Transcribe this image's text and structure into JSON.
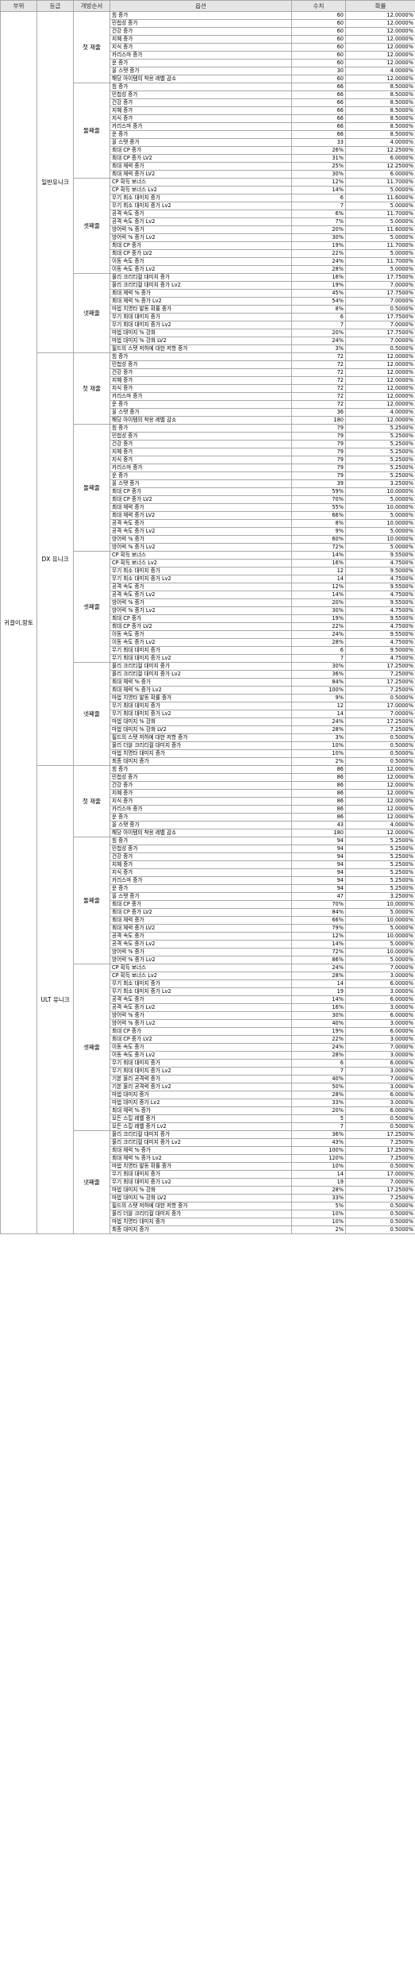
{
  "table": {
    "headers": [
      "부위",
      "등급",
      "개방순서",
      "옵션",
      "수치",
      "확률"
    ],
    "slot": "귀걸이,망토",
    "grades": [
      {
        "name": "일반유니크",
        "stages": [
          {
            "name": "첫 재줄",
            "rows": [
              [
                "힘 증가",
                "60",
                "12.0000%"
              ],
              [
                "민첩성 증가",
                "60",
                "12.0000%"
              ],
              [
                "건강 증가",
                "60",
                "12.0000%"
              ],
              [
                "지혜 증가",
                "60",
                "12.0000%"
              ],
              [
                "지식 증가",
                "60",
                "12.0000%"
              ],
              [
                "카리스마 증가",
                "60",
                "12.0000%"
              ],
              [
                "운 증가",
                "60",
                "12.0000%"
              ],
              [
                "올 스탯 증가",
                "30",
                "4.0000%"
              ],
              [
                "해당 아이템의 착용 레벨 감소",
                "60",
                "12.0000%"
              ]
            ]
          },
          {
            "name": "둘째줄",
            "rows": [
              [
                "힘 증가",
                "66",
                "8.5000%"
              ],
              [
                "민첩성 증가",
                "66",
                "8.5000%"
              ],
              [
                "건강 증가",
                "66",
                "8.5000%"
              ],
              [
                "지혜 증가",
                "66",
                "8.5000%"
              ],
              [
                "지식 증가",
                "66",
                "8.5000%"
              ],
              [
                "카리스마 증가",
                "66",
                "8.5000%"
              ],
              [
                "운 증가",
                "66",
                "8.5000%"
              ],
              [
                "올 스탯 증가",
                "33",
                "4.0000%"
              ],
              [
                "최대 CP 증가",
                "26%",
                "12.2500%"
              ],
              [
                "최대 CP 증가 LV2",
                "31%",
                "6.0000%"
              ],
              [
                "최대 체력 증가",
                "25%",
                "12.2500%"
              ],
              [
                "최대 체력 증가 LV2",
                "30%",
                "6.0000%"
              ]
            ]
          },
          {
            "name": "셋째줄",
            "rows": [
              [
                "CP 획득 보너스",
                "12%",
                "11.7000%"
              ],
              [
                "CP 획득 보너스 Lv2",
                "14%",
                "5.0000%"
              ],
              [
                "무기 최소 대미지 증가",
                "6",
                "11.6000%"
              ],
              [
                "무기 최소 대미지 증가 Lv2",
                "7",
                "5.0000%"
              ],
              [
                "공격 속도 증가",
                "6%",
                "11.7000%"
              ],
              [
                "공격 속도 증가 Lv2",
                "7%",
                "5.0000%"
              ],
              [
                "방어력 % 증가",
                "20%",
                "11.6000%"
              ],
              [
                "방어력 % 증가 Lv2",
                "30%",
                "5.0000%"
              ],
              [
                "최대 CP 증가",
                "19%",
                "11.7000%"
              ],
              [
                "최대 CP 증가 LV2",
                "22%",
                "5.0000%"
              ],
              [
                "이동 속도 증가",
                "24%",
                "11.7000%"
              ],
              [
                "이동 속도 증가 Lv2",
                "28%",
                "5.0000%"
              ]
            ]
          },
          {
            "name": "넷째줄",
            "rows": [
              [
                "물리 크리티컬 대미지 증가",
                "16%",
                "17.7500%"
              ],
              [
                "물리 크리티컬 대미지 증가 Lv2",
                "19%",
                "7.0000%"
              ],
              [
                "최대 체력 % 증가",
                "45%",
                "17.7500%"
              ],
              [
                "최대 체력 % 증가 Lv2",
                "54%",
                "7.0000%"
              ],
              [
                "마법 치명타 발동 확률 증가",
                "8%",
                "0.5000%"
              ],
              [
                "무기 최대 대미지 증가",
                "6",
                "17.7500%"
              ],
              [
                "무기 최대 대미지 증가 Lv2",
                "7",
                "7.0000%"
              ],
              [
                "마법 대미지 % 강화",
                "20%",
                "17.7500%"
              ],
              [
                "마법 대미지 % 강화 LV2",
                "24%",
                "7.0000%"
              ],
              [
                "필드의 스탯 저하에 대한 저항 증가",
                "3%",
                "0.5000%"
              ]
            ]
          }
        ]
      },
      {
        "name": "DX 유니크",
        "stages": [
          {
            "name": "첫 재줄",
            "rows": [
              [
                "힘 증가",
                "72",
                "12.0000%"
              ],
              [
                "민첩성 증가",
                "72",
                "12.0000%"
              ],
              [
                "건강 증가",
                "72",
                "12.0000%"
              ],
              [
                "지혜 증가",
                "72",
                "12.0000%"
              ],
              [
                "지식 증가",
                "72",
                "12.0000%"
              ],
              [
                "카리스마 증가",
                "72",
                "12.0000%"
              ],
              [
                "운 증가",
                "72",
                "12.0000%"
              ],
              [
                "올 스탯 증가",
                "36",
                "4.0000%"
              ],
              [
                "해당 아이템의 착용 레벨 감소",
                "180",
                "12.0000%"
              ]
            ]
          },
          {
            "name": "둘째줄",
            "rows": [
              [
                "힘 증가",
                "79",
                "5.2500%"
              ],
              [
                "민첩성 증가",
                "79",
                "5.2500%"
              ],
              [
                "건강 증가",
                "79",
                "5.2500%"
              ],
              [
                "지혜 증가",
                "79",
                "5.2500%"
              ],
              [
                "지식 증가",
                "79",
                "5.2500%"
              ],
              [
                "카리스마 증가",
                "79",
                "5.2500%"
              ],
              [
                "운 증가",
                "79",
                "5.2500%"
              ],
              [
                "올 스탯 증가",
                "39",
                "3.2500%"
              ],
              [
                "최대 CP 증가",
                "59%",
                "10.0000%"
              ],
              [
                "최대 CP 증가 LV2",
                "70%",
                "5.0000%"
              ],
              [
                "최대 체력 증가",
                "55%",
                "10.0000%"
              ],
              [
                "최대 체력 증가 LV2",
                "66%",
                "5.0000%"
              ],
              [
                "공격 속도 증가",
                "8%",
                "10.0000%"
              ],
              [
                "공격 속도 증가 Lv2",
                "9%",
                "5.0000%"
              ],
              [
                "방어력 % 증가",
                "60%",
                "10.0000%"
              ],
              [
                "방어력 % 증가 Lv2",
                "72%",
                "5.0000%"
              ]
            ]
          },
          {
            "name": "셋째줄",
            "rows": [
              [
                "CP 획득 보너스",
                "14%",
                "9.5500%"
              ],
              [
                "CP 획득 보너스 Lv2",
                "16%",
                "4.7500%"
              ],
              [
                "무기 최소 대미지 증가",
                "12",
                "9.5000%"
              ],
              [
                "무기 최소 대미지 증가 Lv2",
                "14",
                "4.7500%"
              ],
              [
                "공격 속도 증가",
                "12%",
                "9.5500%"
              ],
              [
                "공격 속도 증가 Lv2",
                "14%",
                "4.7500%"
              ],
              [
                "방어력 % 증가",
                "20%",
                "9.5500%"
              ],
              [
                "방어력 % 증가 Lv2",
                "30%",
                "4.7500%"
              ],
              [
                "최대 CP 증가",
                "19%",
                "9.5500%"
              ],
              [
                "최대 CP 증가 LV2",
                "22%",
                "4.7500%"
              ],
              [
                "이동 속도 증가",
                "24%",
                "9.5500%"
              ],
              [
                "이동 속도 증가 Lv2",
                "28%",
                "4.7500%"
              ],
              [
                "무기 최대 대미지 증가",
                "6",
                "9.5000%"
              ],
              [
                "무기 최대 대미지 증가 Lv2",
                "7",
                "4.7500%"
              ]
            ]
          },
          {
            "name": "넷째줄",
            "rows": [
              [
                "물리 크리티컬 대미지 증가",
                "30%",
                "17.2500%"
              ],
              [
                "물리 크리티컬 대미지 증가 Lv2",
                "36%",
                "7.2500%"
              ],
              [
                "최대 체력 % 증가",
                "84%",
                "17.2500%"
              ],
              [
                "최대 체력 % 증가 Lv2",
                "100%",
                "7.2500%"
              ],
              [
                "마법 치명타 발동 확률 증가",
                "9%",
                "0.5000%"
              ],
              [
                "무기 최대 대미지 증가",
                "12",
                "17.0000%"
              ],
              [
                "무기 최대 대미지 증가 Lv2",
                "14",
                "7.0000%"
              ],
              [
                "마법 대미지 % 강화",
                "24%",
                "17.2500%"
              ],
              [
                "마법 대미지 % 강화 LV2",
                "28%",
                "7.2500%"
              ],
              [
                "필드의 스탯 저하에 대한 저항 증가",
                "3%",
                "0.5000%"
              ],
              [
                "물리 더블 크리티컬 대미지 증가",
                "10%",
                "0.5000%"
              ],
              [
                "마법 치명타 대미지 증가",
                "10%",
                "0.5000%"
              ],
              [
                "최종 대미지 증가",
                "2%",
                "0.5000%"
              ]
            ]
          }
        ]
      },
      {
        "name": "ULT 유니크",
        "stages": [
          {
            "name": "첫 재줄",
            "rows": [
              [
                "힘 증가",
                "86",
                "12.0000%"
              ],
              [
                "민첩성 증가",
                "86",
                "12.0000%"
              ],
              [
                "건강 증가",
                "86",
                "12.0000%"
              ],
              [
                "지혜 증가",
                "86",
                "12.0000%"
              ],
              [
                "지식 증가",
                "86",
                "12.0000%"
              ],
              [
                "카리스마 증가",
                "86",
                "12.0000%"
              ],
              [
                "운 증가",
                "86",
                "12.0000%"
              ],
              [
                "올 스탯 증가",
                "43",
                "4.0000%"
              ],
              [
                "해당 아이템의 착용 레벨 감소",
                "180",
                "12.0000%"
              ]
            ]
          },
          {
            "name": "둘째줄",
            "rows": [
              [
                "힘 증가",
                "94",
                "5.2500%"
              ],
              [
                "민첩성 증가",
                "94",
                "5.2500%"
              ],
              [
                "건강 증가",
                "94",
                "5.2500%"
              ],
              [
                "지혜 증가",
                "94",
                "5.2500%"
              ],
              [
                "지식 증가",
                "94",
                "5.2500%"
              ],
              [
                "카리스마 증가",
                "94",
                "5.2500%"
              ],
              [
                "운 증가",
                "94",
                "5.2500%"
              ],
              [
                "올 스탯 증가",
                "47",
                "3.2500%"
              ],
              [
                "최대 CP 증가",
                "70%",
                "10.0000%"
              ],
              [
                "최대 CP 증가 LV2",
                "84%",
                "5.0000%"
              ],
              [
                "최대 체력 증가",
                "66%",
                "10.0000%"
              ],
              [
                "최대 체력 증가 LV2",
                "79%",
                "5.0000%"
              ],
              [
                "공격 속도 증가",
                "12%",
                "10.0000%"
              ],
              [
                "공격 속도 증가 Lv2",
                "14%",
                "5.0000%"
              ],
              [
                "방어력 % 증가",
                "72%",
                "10.0000%"
              ],
              [
                "방어력 % 증가 Lv2",
                "86%",
                "5.0000%"
              ]
            ]
          },
          {
            "name": "셋째줄",
            "rows": [
              [
                "CP 획득 보너스",
                "24%",
                "7.0000%"
              ],
              [
                "CP 획득 보너스 Lv2",
                "28%",
                "3.0000%"
              ],
              [
                "무기 최소 대미지 증가",
                "14",
                "6.0000%"
              ],
              [
                "무기 최소 대미지 증가 Lv2",
                "19",
                "3.0000%"
              ],
              [
                "공격 속도 증가",
                "14%",
                "6.0000%"
              ],
              [
                "공격 속도 증가 Lv2",
                "16%",
                "3.0000%"
              ],
              [
                "방어력 % 증가",
                "30%",
                "6.0000%"
              ],
              [
                "방어력 % 증가 Lv2",
                "40%",
                "3.0000%"
              ],
              [
                "최대 CP 증가",
                "19%",
                "6.0000%"
              ],
              [
                "최대 CP 증가 LV2",
                "22%",
                "3.0000%"
              ],
              [
                "이동 속도 증가",
                "24%",
                "7.0000%"
              ],
              [
                "이동 속도 증가 Lv2",
                "28%",
                "3.0000%"
              ],
              [
                "무기 최대 대미지 증가",
                "6",
                "6.0000%"
              ],
              [
                "무기 최대 대미지 증가 Lv2",
                "7",
                "3.0000%"
              ],
              [
                "기본 물리 공격력 증가",
                "40%",
                "7.0000%"
              ],
              [
                "기본 물리 공격력 증가 Lv2",
                "50%",
                "3.0000%"
              ],
              [
                "마법 대미지 증가",
                "28%",
                "6.0000%"
              ],
              [
                "마법 대미지 증가 Lv2",
                "33%",
                "3.0000%"
              ],
              [
                "최대 체력 % 증가",
                "20%",
                "6.0000%"
              ],
              [
                "모든 스킬 레벨 증가",
                "5",
                "0.5000%"
              ],
              [
                "모든 스킬 레벨 증가 Lv2",
                "7",
                "0.5000%"
              ]
            ]
          },
          {
            "name": "넷째줄",
            "rows": [
              [
                "물리 크리티컬 대미지 증가",
                "36%",
                "17.2500%"
              ],
              [
                "물리 크리티컬 대미지 증가 Lv2",
                "43%",
                "7.2500%"
              ],
              [
                "최대 체력 % 증가",
                "100%",
                "17.2500%"
              ],
              [
                "최대 체력 % 증가 Lv2",
                "120%",
                "7.2500%"
              ],
              [
                "마법 치명타 발동 확률 증가",
                "10%",
                "0.5000%"
              ],
              [
                "무기 최대 대미지 증가",
                "14",
                "17.0000%"
              ],
              [
                "무기 최대 대미지 증가 Lv2",
                "19",
                "7.0000%"
              ],
              [
                "마법 대미지 % 강화",
                "28%",
                "17.2500%"
              ],
              [
                "마법 대미지 % 강화 LV2",
                "33%",
                "7.2500%"
              ],
              [
                "필드의 스탯 저하에 대한 저항 증가",
                "5%",
                "0.5000%"
              ],
              [
                "물리 더블 크리티컬 대미지 증가",
                "10%",
                "0.5000%"
              ],
              [
                "마법 치명타 대미지 증가",
                "10%",
                "0.5000%"
              ],
              [
                "최종 대미지 증가",
                "2%",
                "0.5000%"
              ]
            ]
          }
        ]
      }
    ]
  }
}
